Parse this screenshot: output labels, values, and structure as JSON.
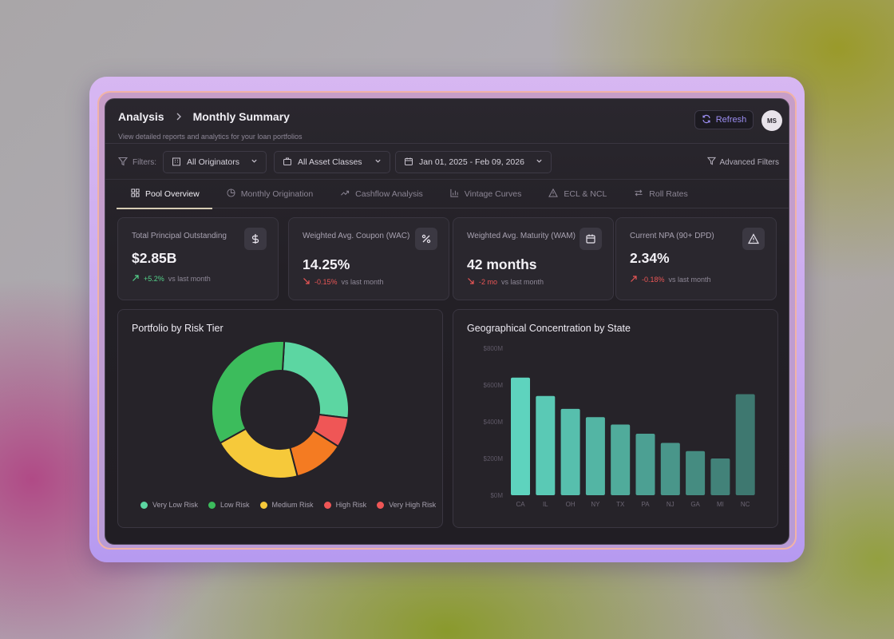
{
  "header": {
    "breadcrumb_root": "Analysis",
    "breadcrumb_current": "Monthly Summary",
    "subtitle": "View detailed reports and analytics for your loan portfolios",
    "refresh_label": "Refresh",
    "avatar_initials": "MS"
  },
  "filters": {
    "label": "Filters:",
    "originators": "All Originators",
    "asset_classes": "All Asset Classes",
    "date_range": "Jan 01, 2025 - Feb 09, 2026",
    "advanced": "Advanced Filters"
  },
  "tabs": [
    {
      "label": "Pool Overview",
      "icon": "grid-icon",
      "active": true
    },
    {
      "label": "Monthly Origination",
      "icon": "pie-icon"
    },
    {
      "label": "Cashflow Analysis",
      "icon": "trend-icon"
    },
    {
      "label": "Vintage Curves",
      "icon": "bar-chart-icon"
    },
    {
      "label": "ECL & NCL",
      "icon": "warning-icon"
    },
    {
      "label": "Roll Rates",
      "icon": "swap-icon"
    }
  ],
  "kpis": [
    {
      "title": "Total Principal Outstanding",
      "value": "$2.85B",
      "delta": "+5.2%",
      "delta_dir": "up",
      "delta_suffix": "vs last month",
      "icon": "dollar-icon"
    },
    {
      "title": "Weighted Avg. Coupon (WAC)",
      "value": "14.25%",
      "delta": "-0.15%",
      "delta_dir": "down",
      "delta_suffix": "vs last month",
      "icon": "percent-icon"
    },
    {
      "title": "Weighted Avg. Maturity (WAM)",
      "value": "42 months",
      "delta": "-2 mo",
      "delta_dir": "down",
      "delta_suffix": "vs last month",
      "icon": "calendar-icon"
    },
    {
      "title": "Current NPA (90+ DPD)",
      "value": "2.34%",
      "delta": "-0.18%",
      "delta_dir": "down",
      "delta_suffix": "vs last month",
      "icon": "alert-icon"
    }
  ],
  "colors": {
    "very_low": "#5cd6a2",
    "low": "#3cbc5c",
    "medium": "#f6c93a",
    "high": "#f47b22",
    "very_high": "#ef5656",
    "bar": "#5ed3be",
    "accent": "#9c8ef2"
  },
  "risk_panel": {
    "title": "Portfolio by Risk Tier"
  },
  "geo_panel": {
    "title": "Geographical Concentration by State"
  },
  "chart_data": [
    {
      "type": "pie",
      "donut": true,
      "labels": [
        "Very Low Risk",
        "Low Risk",
        "Medium Risk",
        "High Risk",
        "Very High Risk"
      ],
      "values": [
        26,
        34,
        21,
        12,
        7
      ],
      "colors": [
        "#5cd6a2",
        "#3cbc5c",
        "#f6c93a",
        "#f47b22",
        "#ef5656"
      ],
      "legend": "bottom"
    },
    {
      "type": "bar",
      "categories": [
        "CA",
        "IL",
        "OH",
        "NY",
        "TX",
        "PA",
        "NJ",
        "GA",
        "MI",
        "NC"
      ],
      "values": [
        640,
        540,
        470,
        425,
        385,
        335,
        285,
        240,
        200,
        550
      ],
      "ytick_labels": [
        "$0M",
        "$200M",
        "$400M",
        "$600M",
        "$800M"
      ],
      "ylim": [
        0,
        800
      ],
      "grid": false
    }
  ]
}
